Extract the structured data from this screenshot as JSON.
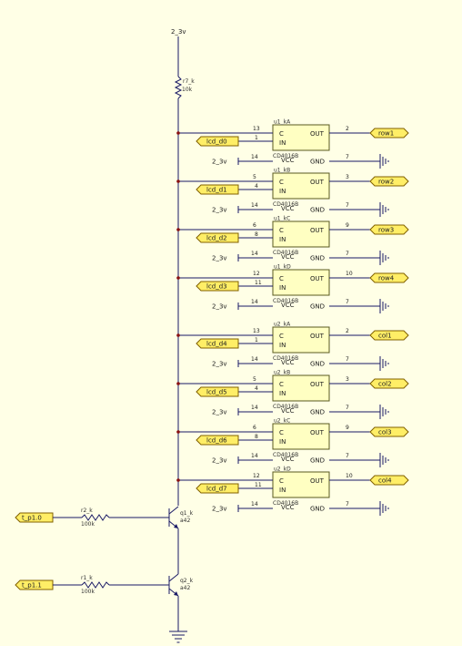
{
  "supply_label": "2_3v",
  "top_resistor": {
    "ref": "r7_k",
    "value": "10k"
  },
  "pin_labels": {
    "c": "C",
    "in": "IN",
    "out": "OUT",
    "gnd": "GND",
    "vcc": "VCC"
  },
  "ic_part": "CD4016B",
  "chips": [
    {
      "ref": "u1_kA",
      "c_pin": "13",
      "in_pin": "1",
      "out_pin": "2",
      "vcc_pin": "14",
      "gnd_pin": "7",
      "input_label": "lcd_d0",
      "output_label": "row1",
      "vcc_label": "2_3v"
    },
    {
      "ref": "u1_kB",
      "c_pin": "5",
      "in_pin": "4",
      "out_pin": "3",
      "vcc_pin": "14",
      "gnd_pin": "7",
      "input_label": "lcd_d1",
      "output_label": "row2",
      "vcc_label": "2_3v"
    },
    {
      "ref": "u1_kC",
      "c_pin": "6",
      "in_pin": "8",
      "out_pin": "9",
      "vcc_pin": "14",
      "gnd_pin": "7",
      "input_label": "lcd_d2",
      "output_label": "row3",
      "vcc_label": "2_3v"
    },
    {
      "ref": "u1_kD",
      "c_pin": "12",
      "in_pin": "11",
      "out_pin": "10",
      "vcc_pin": "14",
      "gnd_pin": "7",
      "input_label": "lcd_d3",
      "output_label": "row4",
      "vcc_label": "2_3v"
    },
    {
      "ref": "u2_kA",
      "c_pin": "13",
      "in_pin": "1",
      "out_pin": "2",
      "vcc_pin": "14",
      "gnd_pin": "7",
      "input_label": "lcd_d4",
      "output_label": "col1",
      "vcc_label": "2_3v"
    },
    {
      "ref": "u2_kB",
      "c_pin": "5",
      "in_pin": "4",
      "out_pin": "3",
      "vcc_pin": "14",
      "gnd_pin": "7",
      "input_label": "lcd_d5",
      "output_label": "col2",
      "vcc_label": "2_3v"
    },
    {
      "ref": "u2_kC",
      "c_pin": "6",
      "in_pin": "8",
      "out_pin": "9",
      "vcc_pin": "14",
      "gnd_pin": "7",
      "input_label": "lcd_d6",
      "output_label": "col3",
      "vcc_label": "2_3v"
    },
    {
      "ref": "u2_kD",
      "c_pin": "12",
      "in_pin": "11",
      "out_pin": "10",
      "vcc_pin": "14",
      "gnd_pin": "7",
      "input_label": "lcd_d7",
      "output_label": "col4",
      "vcc_label": "2_3v"
    }
  ],
  "transistors": [
    {
      "ref": "q1_k",
      "part": "a42",
      "base_input": "t_p1.0",
      "resistor_ref": "r2_k",
      "resistor_value": "100k"
    },
    {
      "ref": "q2_k",
      "part": "a42",
      "base_input": "t_p1.1",
      "resistor_ref": "r1_k",
      "resistor_value": "100k"
    }
  ]
}
